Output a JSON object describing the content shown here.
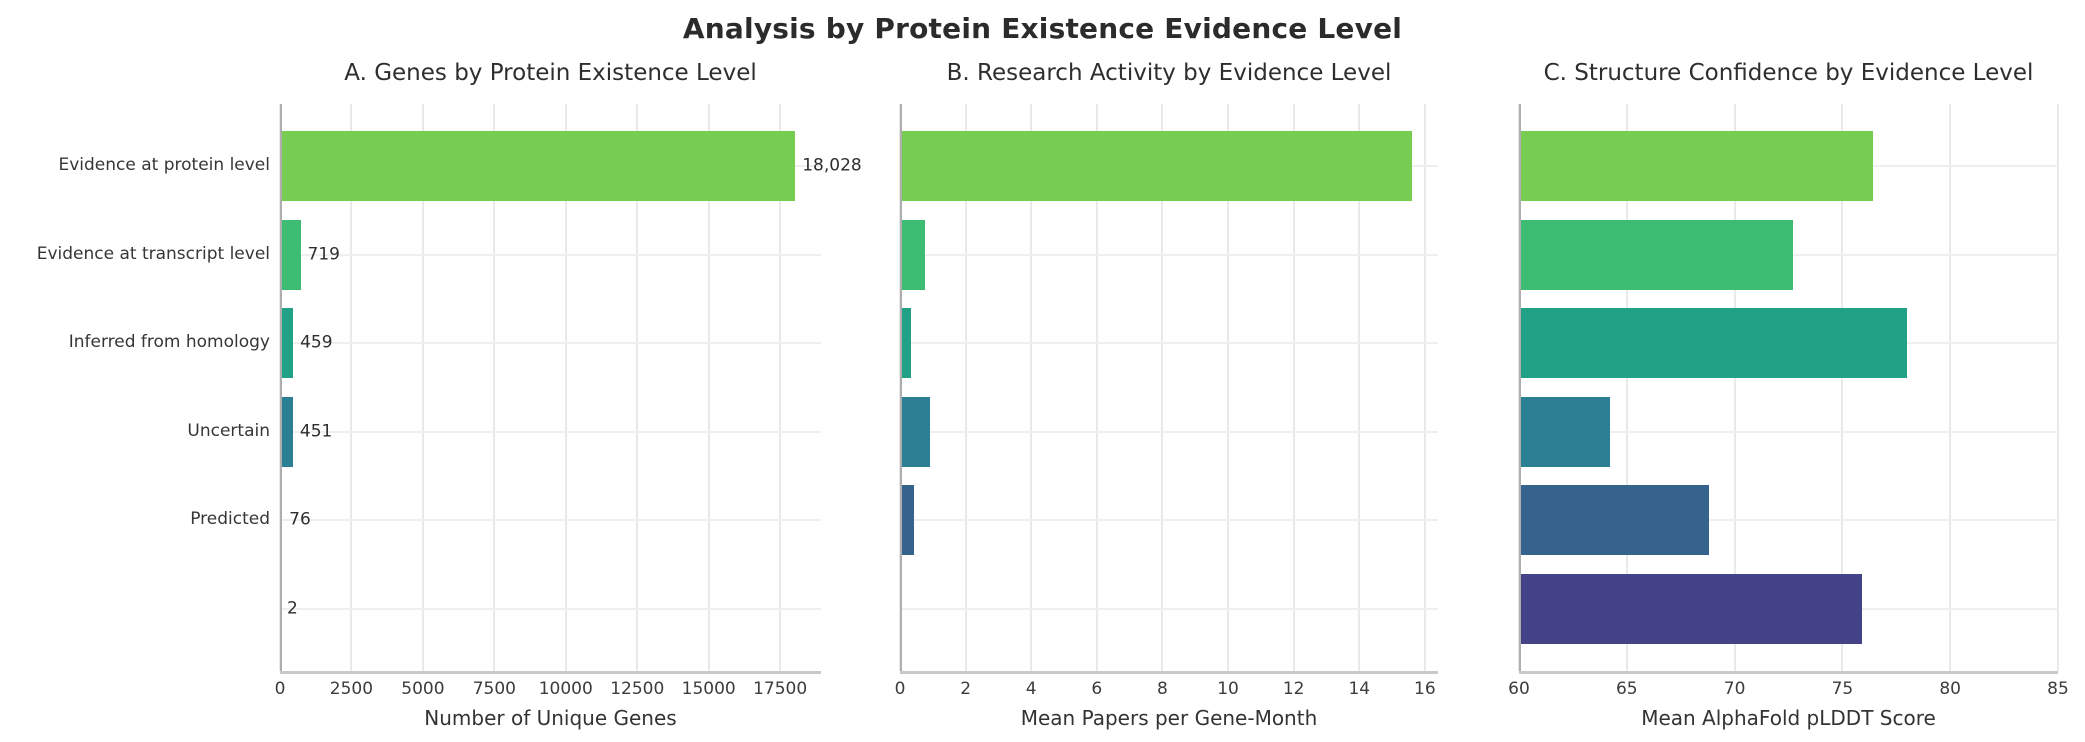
{
  "figure_title": "Analysis by Protein Existence Evidence Level",
  "colors": {
    "bars": [
      "#77cd52",
      "#3dbc74",
      "#21a287",
      "#2a8092",
      "#35638d",
      "#444387"
    ],
    "grid": "#e9e9e9",
    "spine_left": "#aeaeae",
    "spine_bottom": "#c9c9c9",
    "title_text": "#2b2b2b",
    "tick_text": "#3c3c3c"
  },
  "chart_data": [
    {
      "type": "bar",
      "orientation": "horizontal",
      "title": "A. Genes by Protein Existence Level",
      "xlabel": "Number of Unique Genes",
      "categories": [
        "Evidence at protein level",
        "Evidence at transcript level",
        "Inferred from homology",
        "Uncertain",
        "Predicted",
        ""
      ],
      "values": [
        18028,
        719,
        459,
        451,
        76,
        2
      ],
      "value_labels": [
        "18,028",
        "719",
        "459",
        "451",
        "76",
        "2"
      ],
      "xlim": [
        0,
        18930
      ],
      "xticks": [
        0,
        2500,
        5000,
        7500,
        10000,
        12500,
        15000,
        17500
      ],
      "xtick_labels": [
        "0",
        "2500",
        "5000",
        "7500",
        "10000",
        "12500",
        "15000",
        "17500"
      ],
      "grid": true,
      "legend": "none",
      "show_category_labels": true,
      "show_value_labels": true
    },
    {
      "type": "bar",
      "orientation": "horizontal",
      "title": "B. Research Activity by Evidence Level",
      "xlabel": "Mean Papers per Gene-Month",
      "categories": [
        "Evidence at protein level",
        "Evidence at transcript level",
        "Inferred from homology",
        "Uncertain",
        "Predicted",
        ""
      ],
      "values": [
        15.6,
        0.75,
        0.35,
        0.9,
        0.42,
        0
      ],
      "value_labels": [],
      "xlim": [
        0,
        16.4
      ],
      "xticks": [
        0,
        2,
        4,
        6,
        8,
        10,
        12,
        14,
        16
      ],
      "xtick_labels": [
        "0",
        "2",
        "4",
        "6",
        "8",
        "10",
        "12",
        "14",
        "16"
      ],
      "grid": true,
      "legend": "none",
      "show_category_labels": false,
      "show_value_labels": false
    },
    {
      "type": "bar",
      "orientation": "horizontal",
      "title": "C. Structure Confidence by Evidence Level",
      "xlabel": "Mean AlphaFold pLDDT Score",
      "categories": [
        "Evidence at protein level",
        "Evidence at transcript level",
        "Inferred from homology",
        "Uncertain",
        "Predicted",
        ""
      ],
      "values": [
        76.4,
        72.7,
        78.0,
        64.2,
        68.8,
        75.9
      ],
      "value_labels": [],
      "xlim": [
        60,
        85
      ],
      "xticks": [
        60,
        65,
        70,
        75,
        80,
        85
      ],
      "xtick_labels": [
        "60",
        "65",
        "70",
        "75",
        "80",
        "85"
      ],
      "grid": true,
      "legend": "none",
      "show_category_labels": false,
      "show_value_labels": false
    }
  ]
}
